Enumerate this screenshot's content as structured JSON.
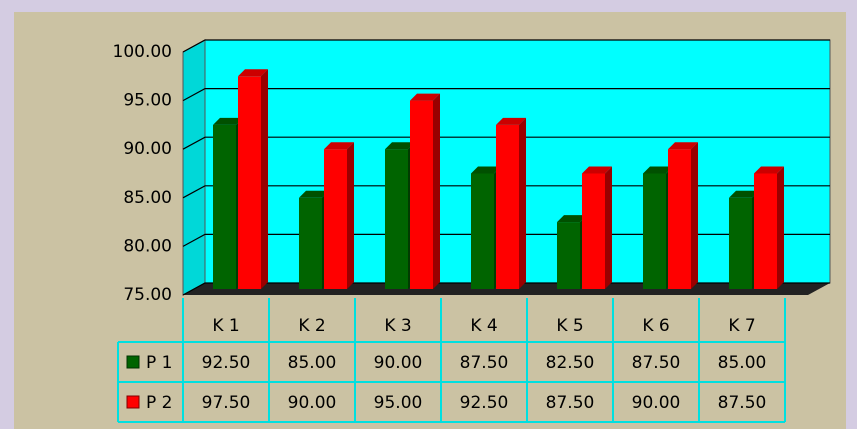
{
  "chart_data": {
    "type": "bar3d",
    "categories": [
      "K 1",
      "K 2",
      "K 3",
      "K 4",
      "K 5",
      "K 6",
      "K 7"
    ],
    "series": [
      {
        "name": "P 1",
        "color": "#006400",
        "values": [
          92.5,
          85,
          90,
          87.5,
          82.5,
          87.5,
          85
        ],
        "value_labels": [
          "92.50",
          "85.00",
          "90.00",
          "87.50",
          "82.50",
          "87.50",
          "85.00"
        ]
      },
      {
        "name": "P 2",
        "color": "#ff0000",
        "values": [
          97.5,
          90,
          95,
          92.5,
          87.5,
          90,
          87.5
        ],
        "value_labels": [
          "97.50",
          "90.00",
          "95.00",
          "92.50",
          "87.50",
          "90.00",
          "87.50"
        ]
      }
    ],
    "ylim": [
      75,
      100
    ],
    "yticks": [
      {
        "value": 75,
        "label": "75.00"
      },
      {
        "value": 80,
        "label": "80.00"
      },
      {
        "value": 85,
        "label": "85.00"
      },
      {
        "value": 90,
        "label": "90.00"
      },
      {
        "value": 95,
        "label": "95.00"
      },
      {
        "value": 100,
        "label": "100.00"
      }
    ],
    "grid": true
  }
}
